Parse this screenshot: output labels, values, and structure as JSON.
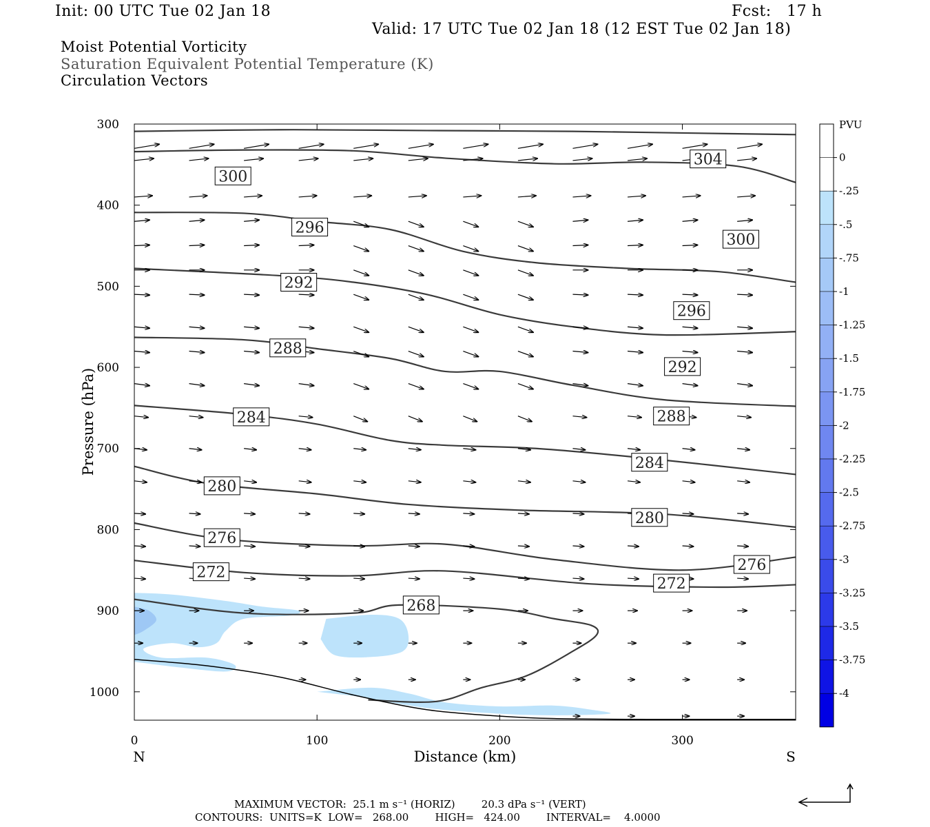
{
  "header": {
    "init": "Init: 00 UTC Tue 02 Jan 18",
    "fcst": "Fcst:   17 h",
    "valid": "Valid: 17 UTC Tue 02 Jan 18 (12 EST Tue 02 Jan 18)",
    "field1": "Moist Potential Vorticity",
    "field2": "Saturation Equivalent Potential Temperature (K)",
    "field3": "Circulation Vectors"
  },
  "footer": {
    "max_vector": "MAXIMUM VECTOR:  25.1 m s⁻¹ (HORIZ)        20.3 dPa s⁻¹ (VERT)",
    "contours": "CONTOURS:  UNITS=K  LOW=   268.00        HIGH=   424.00        INTERVAL=    4.0000"
  },
  "colors": {
    "contour": "#3a3a3a",
    "pv_light": "#bde3fb",
    "pv_mid": "#9ec8f5",
    "text_grey": "#555555"
  },
  "chart_data": {
    "type": "contour",
    "xlabel": "Distance (km)",
    "ylabel": "Pressure (hPa)",
    "xlim": [
      0,
      362
    ],
    "ylim": [
      300,
      1035
    ],
    "x_ticks": [
      0,
      100,
      200,
      300
    ],
    "y_ticks": [
      300,
      400,
      500,
      600,
      700,
      800,
      900,
      1000
    ],
    "left_end_label": "N",
    "right_end_label": "S",
    "colorbar": {
      "title": "PVU",
      "levels": [
        "0",
        "-.25",
        "-.5",
        "-.75",
        "-1",
        "-1.25",
        "-1.5",
        "-1.75",
        "-2",
        "-2.25",
        "-2.5",
        "-2.75",
        "-3",
        "-3.25",
        "-3.5",
        "-3.75",
        "-4"
      ],
      "colors": [
        "#ffffff",
        "#ffffff",
        "#bde3fb",
        "#b1d5f9",
        "#a5c9f7",
        "#9cbdf6",
        "#92b0f5",
        "#87a3f3",
        "#7b95f2",
        "#6f87f0",
        "#6279ef",
        "#556aee",
        "#485bec",
        "#3a4bea",
        "#2c3ae9",
        "#1e29e7",
        "#0f14e5",
        "#0000e4"
      ]
    },
    "contours": [
      {
        "level": 304,
        "points": [
          [
            0,
            309
          ],
          [
            80,
            307
          ],
          [
            160,
            308
          ],
          [
            240,
            309
          ],
          [
            300,
            311
          ],
          [
            362,
            313
          ]
        ],
        "labels": [
          [
            314,
            343
          ]
        ]
      },
      {
        "level": 300,
        "points": [
          [
            0,
            334
          ],
          [
            60,
            332
          ],
          [
            120,
            333
          ],
          [
            170,
            342
          ],
          [
            230,
            349
          ],
          [
            280,
            347
          ],
          [
            330,
            352
          ],
          [
            362,
            372
          ]
        ],
        "labels": [
          [
            54,
            364
          ],
          [
            332,
            442
          ]
        ]
      },
      {
        "level": 296,
        "points": [
          [
            0,
            409
          ],
          [
            60,
            410
          ],
          [
            100,
            420
          ],
          [
            140,
            430
          ],
          [
            180,
            457
          ],
          [
            220,
            471
          ],
          [
            270,
            478
          ],
          [
            320,
            482
          ],
          [
            362,
            495
          ]
        ],
        "labels": [
          [
            96,
            427
          ],
          [
            305,
            530
          ]
        ]
      },
      {
        "level": 292,
        "points": [
          [
            0,
            478
          ],
          [
            80,
            487
          ],
          [
            120,
            495
          ],
          [
            160,
            510
          ],
          [
            200,
            535
          ],
          [
            240,
            550
          ],
          [
            290,
            560
          ],
          [
            362,
            556
          ]
        ],
        "labels": [
          [
            90,
            495
          ],
          [
            300,
            599
          ]
        ]
      },
      {
        "level": 288,
        "points": [
          [
            0,
            563
          ],
          [
            60,
            566
          ],
          [
            100,
            577
          ],
          [
            140,
            589
          ],
          [
            170,
            605
          ],
          [
            200,
            605
          ],
          [
            240,
            622
          ],
          [
            290,
            640
          ],
          [
            362,
            648
          ]
        ],
        "labels": [
          [
            84,
            576
          ],
          [
            294,
            660
          ]
        ]
      },
      {
        "level": 284,
        "points": [
          [
            0,
            647
          ],
          [
            60,
            658
          ],
          [
            100,
            670
          ],
          [
            140,
            690
          ],
          [
            170,
            696
          ],
          [
            220,
            700
          ],
          [
            280,
            712
          ],
          [
            362,
            732
          ]
        ],
        "labels": [
          [
            64,
            661
          ],
          [
            282,
            717
          ]
        ]
      },
      {
        "level": 280,
        "points": [
          [
            0,
            722
          ],
          [
            40,
            743
          ],
          [
            100,
            756
          ],
          [
            150,
            769
          ],
          [
            210,
            776
          ],
          [
            290,
            781
          ],
          [
            362,
            797
          ]
        ],
        "labels": [
          [
            48,
            746
          ],
          [
            282,
            785
          ]
        ]
      },
      {
        "level": 276,
        "points": [
          [
            0,
            792
          ],
          [
            50,
            812
          ],
          [
            120,
            820
          ],
          [
            170,
            818
          ],
          [
            230,
            837
          ],
          [
            300,
            850
          ],
          [
            362,
            834
          ]
        ],
        "labels": [
          [
            48,
            810
          ],
          [
            338,
            843
          ]
        ]
      },
      {
        "level": 272,
        "points": [
          [
            0,
            838
          ],
          [
            60,
            853
          ],
          [
            120,
            857
          ],
          [
            170,
            851
          ],
          [
            250,
            867
          ],
          [
            320,
            871
          ],
          [
            362,
            868
          ]
        ],
        "labels": [
          [
            42,
            852
          ],
          [
            294,
            866
          ]
        ]
      },
      {
        "level": 268,
        "points": [
          [
            0,
            886
          ],
          [
            60,
            903
          ],
          [
            120,
            903
          ],
          [
            145,
            893
          ],
          [
            200,
            898
          ],
          [
            230,
            910
          ],
          [
            250,
            918
          ],
          [
            253,
            930
          ],
          [
            240,
            950
          ],
          [
            215,
            980
          ],
          [
            190,
            995
          ],
          [
            165,
            1012
          ],
          [
            128,
            1010
          ]
        ],
        "labels": [
          [
            157,
            893
          ]
        ]
      }
    ],
    "terrain": [
      [
        0,
        960
      ],
      [
        40,
        968
      ],
      [
        80,
        982
      ],
      [
        120,
        1004
      ],
      [
        160,
        1022
      ],
      [
        200,
        1030
      ],
      [
        230,
        1033
      ],
      [
        280,
        1034
      ],
      [
        330,
        1034
      ],
      [
        362,
        1034
      ]
    ]
  }
}
